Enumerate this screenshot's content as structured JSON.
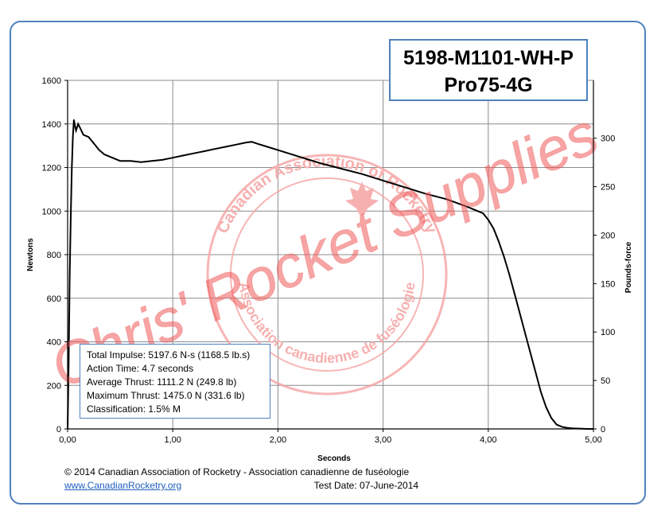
{
  "chart_data": {
    "type": "line",
    "title": "5198-M1101-WH-P",
    "subtitle": "Pro75-4G",
    "xlabel": "Seconds",
    "ylabel": "Newtons",
    "y2label": "Pounds-force",
    "xlim": [
      0,
      5
    ],
    "ylim": [
      0,
      1600
    ],
    "y2lim": [
      0,
      359.7
    ],
    "grid": true,
    "legend": "none",
    "x_ticks": [
      "0,00",
      "1,00",
      "2,00",
      "3,00",
      "4,00",
      "5,00"
    ],
    "y_ticks": [
      "0",
      "200",
      "400",
      "600",
      "800",
      "1000",
      "1200",
      "1400",
      "1600"
    ],
    "y2_ticks": [
      "0",
      "50",
      "100",
      "150",
      "200",
      "250",
      "300"
    ],
    "series": [
      {
        "color": "#000000",
        "x": [
          0.0,
          0.01,
          0.02,
          0.03,
          0.04,
          0.05,
          0.06,
          0.07,
          0.08,
          0.1,
          0.12,
          0.15,
          0.2,
          0.25,
          0.3,
          0.35,
          0.4,
          0.45,
          0.5,
          0.6,
          0.7,
          0.8,
          0.9,
          1.0,
          1.1,
          1.2,
          1.3,
          1.4,
          1.5,
          1.6,
          1.7,
          1.75,
          1.8,
          1.9,
          2.0,
          2.2,
          2.4,
          2.6,
          2.8,
          3.0,
          3.2,
          3.4,
          3.6,
          3.8,
          3.9,
          3.95,
          4.0,
          4.05,
          4.1,
          4.15,
          4.2,
          4.25,
          4.3,
          4.35,
          4.4,
          4.45,
          4.5,
          4.55,
          4.6,
          4.65,
          4.7,
          4.75,
          4.8,
          4.85,
          4.9,
          4.95,
          5.0
        ],
        "y": [
          0,
          300,
          700,
          980,
          1200,
          1340,
          1420,
          1390,
          1370,
          1400,
          1380,
          1350,
          1340,
          1310,
          1280,
          1260,
          1250,
          1240,
          1230,
          1230,
          1225,
          1230,
          1235,
          1245,
          1255,
          1265,
          1275,
          1285,
          1295,
          1305,
          1315,
          1318,
          1310,
          1295,
          1280,
          1250,
          1220,
          1195,
          1170,
          1140,
          1110,
          1080,
          1055,
          1020,
          1000,
          990,
          960,
          920,
          860,
          790,
          710,
          620,
          530,
          440,
          350,
          260,
          170,
          100,
          50,
          20,
          10,
          5,
          3,
          2,
          1,
          0,
          0
        ]
      }
    ]
  },
  "stats": {
    "total_impulse": "Total Impulse: 5197.6 N-s (1168.5 lb.s)",
    "action_time": "Action Time: 4.7 seconds",
    "average_thrust": "Average Thrust: 1111.2 N (249.8 lb)",
    "maximum_thrust": "Maximum Thrust: 1475.0 N (331.6 lb)",
    "classification": "Classification: 1.5% M"
  },
  "footer": {
    "copyright": "© 2014 Canadian Association of Rocketry - Association canadienne de fuséologie",
    "website": "www.CanadianRocketry.org",
    "test_date": "Test  Date: 07-June-2014"
  },
  "watermark": {
    "script_text": "Chris' Rocket Supplies",
    "seal_text_top": "Canadian Association of Rocketry",
    "seal_text_bottom": "Association canadienne de fuséologie",
    "color": "#f05a5a"
  }
}
